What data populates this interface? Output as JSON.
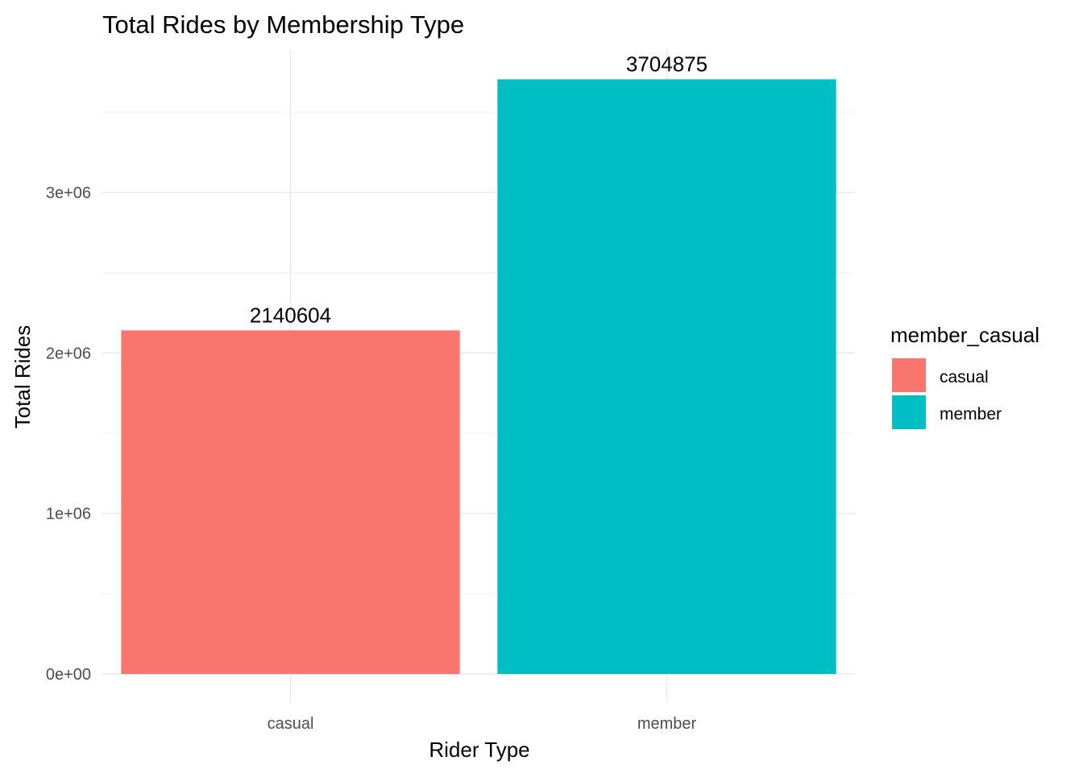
{
  "chart_data": {
    "type": "bar",
    "title": "Total Rides by Membership Type",
    "xlabel": "Rider Type",
    "ylabel": "Total Rides",
    "categories": [
      "casual",
      "member"
    ],
    "values": [
      2140604,
      3704875
    ],
    "data_labels": [
      "2140604",
      "3704875"
    ],
    "colors": [
      "#F8766D",
      "#00BFC4"
    ],
    "ylim": [
      0,
      3900000
    ],
    "y_ticks": [
      0,
      1000000,
      2000000,
      3000000
    ],
    "y_tick_labels": [
      "0e+00",
      "1e+06",
      "2e+06",
      "3e+06"
    ],
    "grid": true,
    "legend": {
      "title": "member_casual",
      "position": "right",
      "entries": [
        "casual",
        "member"
      ]
    }
  }
}
